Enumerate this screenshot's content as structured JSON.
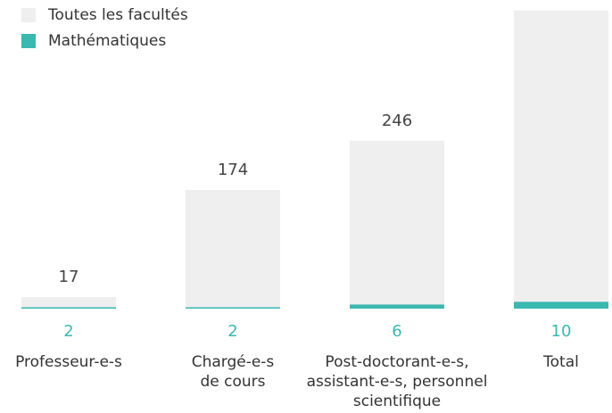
{
  "chart_data": {
    "type": "bar",
    "categories": [
      [
        "Professeur-e-s"
      ],
      [
        "Chargé-e-s",
        "de cours"
      ],
      [
        "Post-doctorant-e-s,",
        "assistant-e-s, personnel",
        "scientifique"
      ],
      [
        "Total"
      ]
    ],
    "series": [
      {
        "name": "Toutes les facultés",
        "color": "#efefef",
        "values": [
          17,
          174,
          246,
          437
        ]
      },
      {
        "name": "Mathématiques",
        "color": "#3bb8b0",
        "values": [
          2,
          2,
          6,
          10
        ]
      }
    ],
    "legend": "top-left"
  }
}
